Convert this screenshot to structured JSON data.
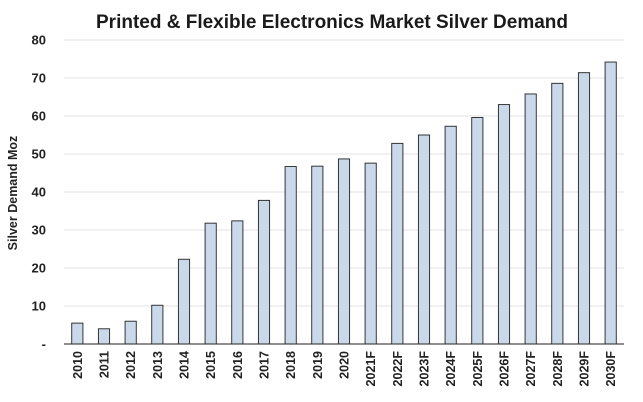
{
  "chart_data": {
    "type": "bar",
    "title": "Printed & Flexible Electronics Market  Silver Demand",
    "ylabel": "Silver Demand Moz",
    "xlabel": "",
    "ylim": [
      0,
      80
    ],
    "yticks": [
      {
        "value": 0,
        "label": "-"
      },
      {
        "value": 10,
        "label": "10"
      },
      {
        "value": 20,
        "label": "20"
      },
      {
        "value": 30,
        "label": "30"
      },
      {
        "value": 40,
        "label": "40"
      },
      {
        "value": 50,
        "label": "50"
      },
      {
        "value": 60,
        "label": "60"
      },
      {
        "value": 70,
        "label": "70"
      },
      {
        "value": 80,
        "label": "80"
      }
    ],
    "grid": true,
    "legend": "none",
    "bar_color": "#c9d9ea",
    "categories": [
      "2010",
      "2011",
      "2012",
      "2013",
      "2014",
      "2015",
      "2016",
      "2017",
      "2018",
      "2019",
      "2020",
      "2021F",
      "2022F",
      "2023F",
      "2024F",
      "2025F",
      "2026F",
      "2027F",
      "2028F",
      "2029F",
      "2030F"
    ],
    "values": [
      5.5,
      4.0,
      6.0,
      10.2,
      22.3,
      31.8,
      32.4,
      37.8,
      46.7,
      46.8,
      48.7,
      47.6,
      52.8,
      55.0,
      57.3,
      59.6,
      63.0,
      65.8,
      68.6,
      71.4,
      74.2
    ]
  }
}
